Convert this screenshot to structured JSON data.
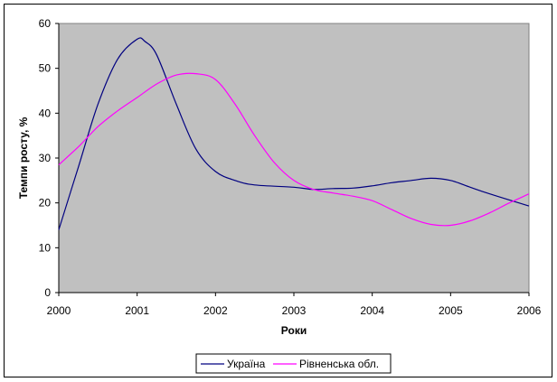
{
  "chart_data": {
    "type": "line",
    "title": "",
    "xlabel": "Роки",
    "ylabel": "Темпи росту, %",
    "xlim": [
      2000,
      2006
    ],
    "ylim": [
      0,
      60
    ],
    "x_ticks": [
      "2000",
      "2001",
      "2002",
      "2003",
      "2004",
      "2005",
      "2006"
    ],
    "y_ticks": [
      "0",
      "10",
      "20",
      "30",
      "40",
      "50",
      "60"
    ],
    "grid": false,
    "legend_position": "bottom",
    "plot_background": "#c0c0c0",
    "series": [
      {
        "name": "Україна",
        "color": "#000080",
        "x": [
          2000,
          2000.25,
          2000.5,
          2000.75,
          2001,
          2001.1,
          2001.25,
          2001.5,
          2001.75,
          2002,
          2002.25,
          2002.5,
          2003,
          2003.25,
          2003.5,
          2003.75,
          2004,
          2004.25,
          2004.5,
          2004.75,
          2005,
          2005.25,
          2005.5,
          2006
        ],
        "y": [
          14,
          28,
          42,
          52,
          56.5,
          56,
          53,
          42,
          32,
          27,
          25,
          24,
          23.5,
          23,
          23.2,
          23.3,
          23.8,
          24.5,
          25,
          25.5,
          25,
          23.5,
          22,
          19.3
        ]
      },
      {
        "name": "Рівненська обл.",
        "color": "#ff00ff",
        "x": [
          2000,
          2000.25,
          2000.5,
          2000.75,
          2001,
          2001.25,
          2001.5,
          2001.75,
          2002,
          2002.25,
          2002.5,
          2002.75,
          2003,
          2003.25,
          2003.5,
          2003.75,
          2004,
          2004.25,
          2004.5,
          2004.75,
          2005,
          2005.25,
          2005.5,
          2005.75,
          2006
        ],
        "y": [
          28.5,
          32.5,
          37,
          40.5,
          43.5,
          46.5,
          48.5,
          48.8,
          47.5,
          42,
          35,
          29,
          25,
          23,
          22.2,
          21.5,
          20.5,
          18.5,
          16.5,
          15.2,
          15,
          16,
          17.8,
          20,
          22
        ]
      }
    ]
  }
}
